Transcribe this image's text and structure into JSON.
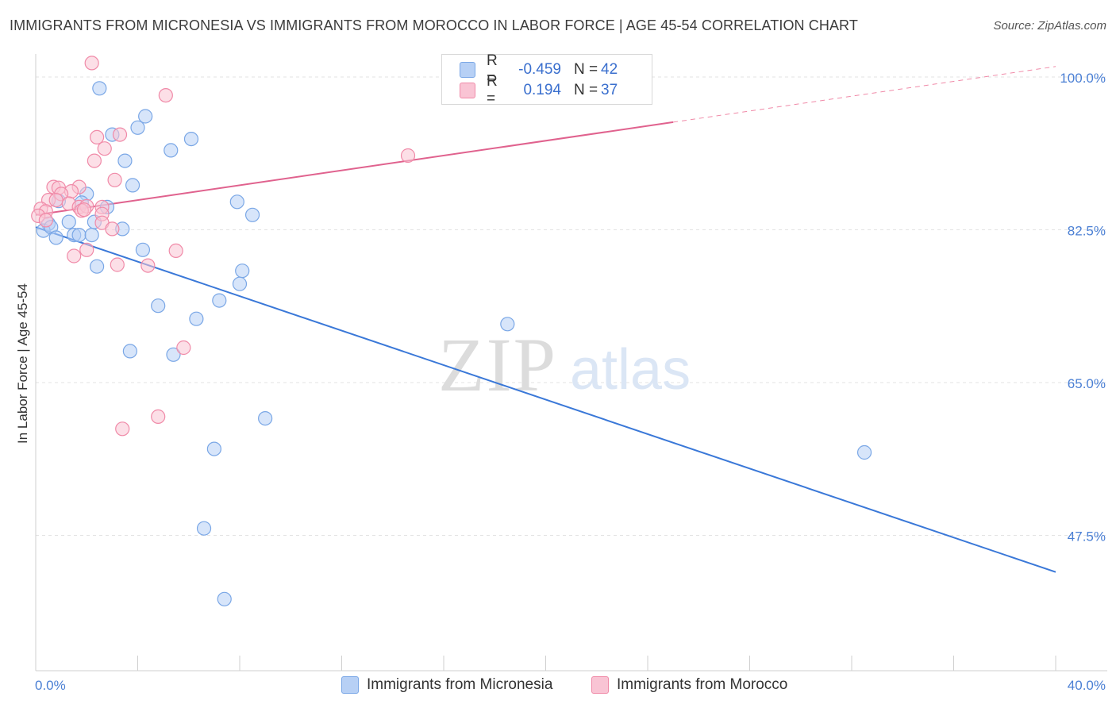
{
  "title": "IMMIGRANTS FROM MICRONESIA VS IMMIGRANTS FROM MOROCCO IN LABOR FORCE | AGE 45-54 CORRELATION CHART",
  "source": "Source: ZipAtlas.com",
  "watermark": {
    "zip": "ZIP",
    "atlas": "atlas"
  },
  "legend": {
    "rows": [
      {
        "r_label": "R =",
        "r_value": "-0.459",
        "n_label": "N =",
        "n_value": "42",
        "color": "#7aa7e6",
        "fill": "#b7d0f5"
      },
      {
        "r_label": "R =",
        "r_value": "0.194",
        "n_label": "N =",
        "n_value": "37",
        "color": "#f08aa8",
        "fill": "#f9c4d4"
      }
    ]
  },
  "chart_data": {
    "type": "scatter",
    "ylabel": "In Labor Force | Age 45-54",
    "xlim": [
      0,
      40
    ],
    "ylim": [
      32,
      102
    ],
    "x_tick_labels": [
      "0.0%",
      "40.0%"
    ],
    "y_ticks": [
      47.5,
      65.0,
      82.5,
      100.0
    ],
    "y_tick_labels": [
      "47.5%",
      "65.0%",
      "82.5%",
      "100.0%"
    ],
    "grid": true,
    "legend_position": "bottom",
    "series": [
      {
        "name": "Immigrants from Micronesia",
        "color": "#3a78d8",
        "fill": "#b7d0f5",
        "stroke": "#7aa7e6",
        "trend": {
          "x": [
            0,
            40
          ],
          "y": [
            82.8,
            43.3
          ],
          "dashed_from": null
        },
        "points": [
          [
            2.5,
            98.7
          ],
          [
            4.3,
            95.5
          ],
          [
            3.0,
            93.4
          ],
          [
            4.0,
            94.2
          ],
          [
            6.1,
            92.9
          ],
          [
            5.3,
            91.6
          ],
          [
            3.5,
            90.4
          ],
          [
            3.8,
            87.6
          ],
          [
            2.0,
            86.6
          ],
          [
            0.9,
            85.8
          ],
          [
            1.8,
            85.6
          ],
          [
            2.8,
            85.1
          ],
          [
            7.9,
            85.7
          ],
          [
            8.5,
            84.2
          ],
          [
            0.5,
            83.2
          ],
          [
            1.3,
            83.4
          ],
          [
            2.3,
            83.4
          ],
          [
            3.4,
            82.6
          ],
          [
            0.3,
            82.4
          ],
          [
            0.6,
            82.8
          ],
          [
            0.8,
            81.6
          ],
          [
            1.5,
            81.9
          ],
          [
            1.7,
            81.9
          ],
          [
            2.2,
            81.9
          ],
          [
            4.2,
            80.2
          ],
          [
            2.4,
            78.3
          ],
          [
            8.1,
            77.8
          ],
          [
            8.0,
            76.3
          ],
          [
            4.8,
            73.8
          ],
          [
            7.2,
            74.4
          ],
          [
            6.3,
            72.3
          ],
          [
            18.5,
            71.7
          ],
          [
            3.7,
            68.6
          ],
          [
            5.4,
            68.2
          ],
          [
            9.0,
            60.9
          ],
          [
            7.0,
            57.4
          ],
          [
            32.5,
            57.0
          ],
          [
            6.6,
            48.3
          ],
          [
            7.4,
            40.2
          ]
        ]
      },
      {
        "name": "Immigrants from Morocco",
        "color": "#e0628e",
        "fill": "#f9c4d4",
        "stroke": "#f08aa8",
        "trend": {
          "x": [
            0,
            40
          ],
          "y": [
            84.2,
            101.2
          ],
          "dashed_from": 25
        },
        "points": [
          [
            2.2,
            101.6
          ],
          [
            5.1,
            97.9
          ],
          [
            3.3,
            93.4
          ],
          [
            2.4,
            93.1
          ],
          [
            2.7,
            91.8
          ],
          [
            2.3,
            90.4
          ],
          [
            14.6,
            91.0
          ],
          [
            3.1,
            88.2
          ],
          [
            0.7,
            87.4
          ],
          [
            0.9,
            87.3
          ],
          [
            1.7,
            87.4
          ],
          [
            1.4,
            86.9
          ],
          [
            1.0,
            86.6
          ],
          [
            0.5,
            85.9
          ],
          [
            0.8,
            85.9
          ],
          [
            1.3,
            85.5
          ],
          [
            1.7,
            85.1
          ],
          [
            2.0,
            85.2
          ],
          [
            2.6,
            85.1
          ],
          [
            0.2,
            84.9
          ],
          [
            0.4,
            84.6
          ],
          [
            1.8,
            84.7
          ],
          [
            1.9,
            84.8
          ],
          [
            2.6,
            84.3
          ],
          [
            0.1,
            84.1
          ],
          [
            0.4,
            83.6
          ],
          [
            2.6,
            83.3
          ],
          [
            3.0,
            82.6
          ],
          [
            1.5,
            79.5
          ],
          [
            5.5,
            80.1
          ],
          [
            2.0,
            80.2
          ],
          [
            3.2,
            78.5
          ],
          [
            4.4,
            78.4
          ],
          [
            5.8,
            69.0
          ],
          [
            3.4,
            59.7
          ],
          [
            4.8,
            61.1
          ]
        ]
      }
    ]
  }
}
